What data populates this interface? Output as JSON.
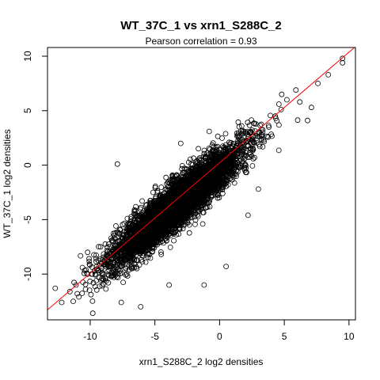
{
  "chart_data": {
    "type": "scatter",
    "title": "WT_37C_1 vs xrn1_S288C_2",
    "subtitle": "Pearson correlation =  0.93",
    "xlabel": "xrn1_S288C_2 log2 densities",
    "ylabel": "WT_37C_1 log2 densities",
    "xlim": [
      -13.3,
      10.5
    ],
    "ylim": [
      -14.2,
      10.8
    ],
    "xticks": [
      -10,
      -5,
      0,
      5,
      10
    ],
    "yticks": [
      -10,
      -5,
      0,
      5,
      10
    ],
    "fit_line": {
      "intercept": 0.22,
      "slope": 1.015,
      "color": "#ff0000"
    },
    "point_color": "#000000",
    "cloud": {
      "n_points": 5200,
      "center": [
        -3.3,
        -3.6
      ],
      "x_sd": 2.5,
      "slope": 0.98,
      "residual_sd": 1.05
    },
    "outliers": [
      [
        -12.7,
        -11.3
      ],
      [
        -11.1,
        -11.0
      ],
      [
        -12.2,
        -12.6
      ],
      [
        -11.0,
        -11.8
      ],
      [
        -10.6,
        -9.4
      ],
      [
        -9.8,
        -13.6
      ],
      [
        -7.9,
        0.1
      ],
      [
        9.5,
        9.4
      ],
      [
        9.5,
        9.8
      ],
      [
        8.4,
        8.3
      ],
      [
        7.6,
        7.5
      ],
      [
        6.2,
        5.8
      ],
      [
        5.2,
        6.0
      ],
      [
        4.8,
        6.5
      ],
      [
        3.4,
        2.3
      ],
      [
        3.0,
        -2.2
      ],
      [
        2.2,
        -4.6
      ],
      [
        0.5,
        -9.3
      ],
      [
        -1.2,
        -11.0
      ],
      [
        -3.9,
        -11.0
      ],
      [
        -1.3,
        -5.4
      ],
      [
        -6.1,
        -13.0
      ],
      [
        -10.2,
        -8.0
      ],
      [
        -9.2,
        -7.5
      ],
      [
        -8.6,
        -10.8
      ],
      [
        -7.6,
        -12.6
      ],
      [
        6.8,
        4.1
      ],
      [
        7.1,
        5.3
      ],
      [
        5.9,
        6.9
      ],
      [
        4.3,
        4.5
      ],
      [
        -0.8,
        3.1
      ],
      [
        -3.0,
        2.0
      ]
    ]
  }
}
